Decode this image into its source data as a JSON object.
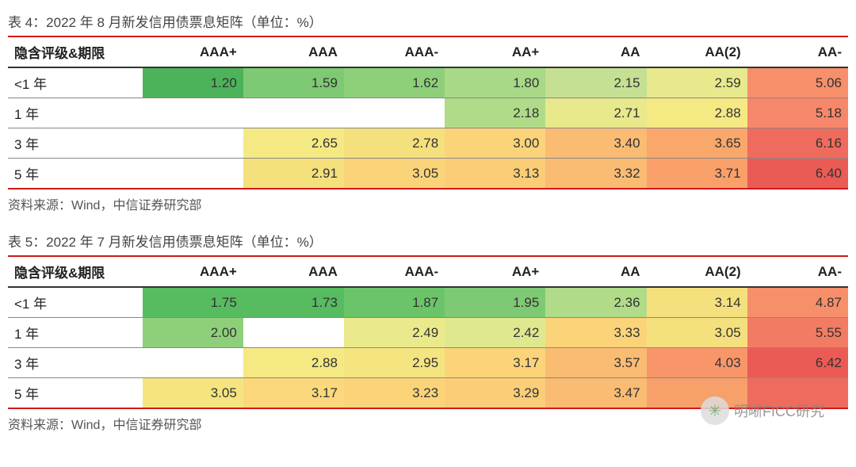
{
  "watermark": {
    "text": "明晰FICC研究",
    "icon": "wechat-icon"
  },
  "colors": {
    "border_red": "#d01919",
    "header_border": "#333333",
    "row_border": "#888888",
    "heatmap": {
      "min": "#57bb60",
      "low": "#8ed07a",
      "mid_low": "#c6e093",
      "mid": "#f5e984",
      "mid_high": "#fbd47a",
      "high": "#f9a76a",
      "max": "#ee6b5e",
      "empty": "#ffffff"
    }
  },
  "tables": [
    {
      "title": "表 4：2022 年 8 月新发信用债票息矩阵（单位：%）",
      "columns": [
        "隐含评级&期限",
        "AAA+",
        "AAA",
        "AAA-",
        "AA+",
        "AA",
        "AA(2)",
        "AA-"
      ],
      "col_widths": [
        "16%",
        "12%",
        "12%",
        "12%",
        "12%",
        "12%",
        "12%",
        "12%"
      ],
      "rows": [
        {
          "label": "<1 年",
          "cells": [
            {
              "v": "1.20",
              "c": "#4cb35a"
            },
            {
              "v": "1.59",
              "c": "#7ec973"
            },
            {
              "v": "1.62",
              "c": "#8ed07a"
            },
            {
              "v": "1.80",
              "c": "#a7d986"
            },
            {
              "v": "2.15",
              "c": "#c6e093"
            },
            {
              "v": "2.59",
              "c": "#e7e98c"
            },
            {
              "v": "5.06",
              "c": "#f68f6a"
            }
          ]
        },
        {
          "label": "1 年",
          "cells": [
            {
              "v": "",
              "c": "#ffffff"
            },
            {
              "v": "",
              "c": "#ffffff"
            },
            {
              "v": "",
              "c": "#ffffff"
            },
            {
              "v": "2.18",
              "c": "#b0db88"
            },
            {
              "v": "2.71",
              "c": "#e7e98c"
            },
            {
              "v": "2.88",
              "c": "#f5e984"
            },
            {
              "v": "5.18",
              "c": "#f6876a"
            }
          ]
        },
        {
          "label": "3 年",
          "cells": [
            {
              "v": "",
              "c": "#ffffff"
            },
            {
              "v": "2.65",
              "c": "#f5e984"
            },
            {
              "v": "2.78",
              "c": "#f5e07e"
            },
            {
              "v": "3.00",
              "c": "#fbd47a"
            },
            {
              "v": "3.40",
              "c": "#fabb73"
            },
            {
              "v": "3.65",
              "c": "#f9a76a"
            },
            {
              "v": "6.16",
              "c": "#ee6b5e"
            }
          ]
        },
        {
          "label": "5 年",
          "cells": [
            {
              "v": "",
              "c": "#ffffff"
            },
            {
              "v": "2.91",
              "c": "#f5e07e"
            },
            {
              "v": "3.05",
              "c": "#fbd47a"
            },
            {
              "v": "3.13",
              "c": "#fbcd77"
            },
            {
              "v": "3.32",
              "c": "#fabb73"
            },
            {
              "v": "3.71",
              "c": "#f9a06a"
            },
            {
              "v": "6.40",
              "c": "#eb5b55"
            }
          ]
        }
      ],
      "source": "资料来源：Wind，中信证券研究部"
    },
    {
      "title": "表 5：2022 年 7 月新发信用债票息矩阵（单位：%）",
      "columns": [
        "隐含评级&期限",
        "AAA+",
        "AAA",
        "AAA-",
        "AA+",
        "AA",
        "AA(2)",
        "AA-"
      ],
      "col_widths": [
        "16%",
        "12%",
        "12%",
        "12%",
        "12%",
        "12%",
        "12%",
        "12%"
      ],
      "rows": [
        {
          "label": "<1 年",
          "cells": [
            {
              "v": "1.75",
              "c": "#57bb60"
            },
            {
              "v": "1.73",
              "c": "#57bb60"
            },
            {
              "v": "1.87",
              "c": "#6cc46a"
            },
            {
              "v": "1.95",
              "c": "#7ec973"
            },
            {
              "v": "2.36",
              "c": "#b0db88"
            },
            {
              "v": "3.14",
              "c": "#f5e07e"
            },
            {
              "v": "4.87",
              "c": "#f68f6a"
            }
          ]
        },
        {
          "label": "1 年",
          "cells": [
            {
              "v": "2.00",
              "c": "#8ed07a"
            },
            {
              "v": "",
              "c": "#ffffff"
            },
            {
              "v": "2.49",
              "c": "#eaea8d"
            },
            {
              "v": "2.42",
              "c": "#dfe88f"
            },
            {
              "v": "3.33",
              "c": "#fbd47a"
            },
            {
              "v": "3.05",
              "c": "#f5e07e"
            },
            {
              "v": "5.55",
              "c": "#f17c63"
            }
          ]
        },
        {
          "label": "3 年",
          "cells": [
            {
              "v": "",
              "c": "#ffffff"
            },
            {
              "v": "2.88",
              "c": "#f5e984"
            },
            {
              "v": "2.95",
              "c": "#f5e580"
            },
            {
              "v": "3.17",
              "c": "#fbd47a"
            },
            {
              "v": "3.57",
              "c": "#fabb73"
            },
            {
              "v": "4.03",
              "c": "#f8966a"
            },
            {
              "v": "6.42",
              "c": "#eb5b55"
            }
          ]
        },
        {
          "label": "5 年",
          "cells": [
            {
              "v": "3.05",
              "c": "#f5e580"
            },
            {
              "v": "3.17",
              "c": "#fbd87b"
            },
            {
              "v": "3.23",
              "c": "#fbd47a"
            },
            {
              "v": "3.29",
              "c": "#fbcd77"
            },
            {
              "v": "3.47",
              "c": "#fabb73"
            },
            {
              "v": "",
              "c": "#f8a06a"
            },
            {
              "v": "",
              "c": "#ee6b5e"
            }
          ]
        }
      ],
      "source": "资料来源：Wind，中信证券研究部"
    }
  ]
}
